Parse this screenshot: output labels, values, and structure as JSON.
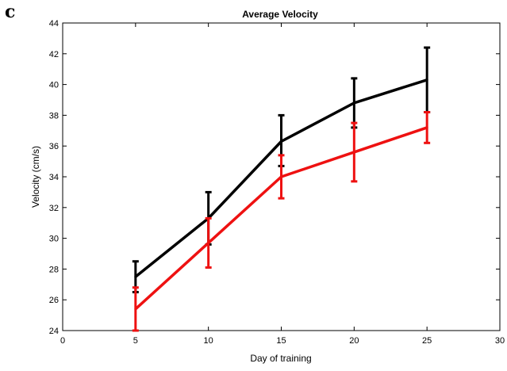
{
  "panel_label": "c",
  "chart_data": {
    "type": "line",
    "title": "Average Velocity",
    "xlabel": "Day of training",
    "ylabel": "Velocity (cm/s)",
    "xlim": [
      0,
      30
    ],
    "ylim": [
      24,
      44
    ],
    "x_ticks": [
      0,
      5,
      10,
      15,
      20,
      25,
      30
    ],
    "y_ticks": [
      24,
      26,
      28,
      30,
      32,
      34,
      36,
      38,
      40,
      42,
      44
    ],
    "grid": false,
    "legend": false,
    "x": [
      5,
      10,
      15,
      20,
      25
    ],
    "series": [
      {
        "color": "#000000",
        "values": [
          27.5,
          31.3,
          36.3,
          38.8,
          40.3
        ],
        "err_low": [
          26.5,
          29.6,
          34.7,
          37.2,
          38.2
        ],
        "err_high": [
          28.5,
          33.0,
          38.0,
          40.4,
          42.4
        ]
      },
      {
        "color": "#ee1111",
        "values": [
          25.4,
          29.7,
          34.0,
          35.6,
          37.2
        ],
        "err_low": [
          24.0,
          28.1,
          32.6,
          33.7,
          36.2
        ],
        "err_high": [
          26.8,
          31.3,
          35.4,
          37.5,
          38.2
        ]
      }
    ]
  }
}
